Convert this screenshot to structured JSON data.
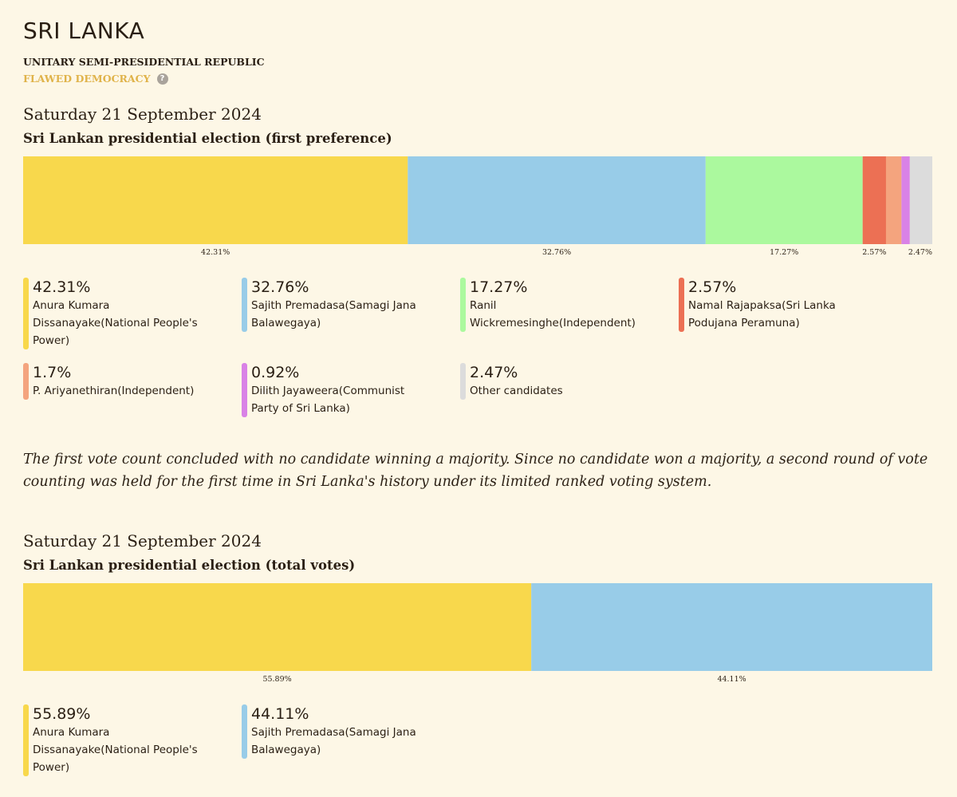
{
  "country": {
    "name": "SRI LANKA",
    "government_type": "UNITARY SEMI-PRESIDENTIAL REPUBLIC",
    "democracy_index": "FLAWED DEMOCRACY",
    "democracy_color": "#e0b34a",
    "help_icon": "?"
  },
  "note": "The first vote count concluded with no candidate winning a majority. Since no candidate won a majority, a second round of vote counting was held for the first time in Sri Lanka's history under its limited ranked voting system.",
  "chart_data": [
    {
      "type": "bar",
      "orientation": "stacked-horizontal",
      "date": "Saturday 21 September 2024",
      "title": "Sri Lankan presidential election (first preference)",
      "series": [
        {
          "name": "Anura Kumara Dissanayake(National People's Power)",
          "value": 42.31,
          "label": "42.31%",
          "bar_label": "42.31%",
          "color": "#f8d84c"
        },
        {
          "name": "Sajith Premadasa(Samagi Jana Balawegaya)",
          "value": 32.76,
          "label": "32.76%",
          "bar_label": "32.76%",
          "color": "#98cce8"
        },
        {
          "name": "Ranil Wickremesinghe(Independent)",
          "value": 17.27,
          "label": "17.27%",
          "bar_label": "17.27%",
          "color": "#abf99e"
        },
        {
          "name": "Namal Rajapaksa(Sri Lanka Podujana Peramuna)",
          "value": 2.57,
          "label": "2.57%",
          "bar_label": "2.57%",
          "color": "#ec7054"
        },
        {
          "name": "P. Ariyanethiran(Independent)",
          "value": 1.7,
          "label": "1.7%",
          "bar_label": "",
          "color": "#f4a47e"
        },
        {
          "name": "Dilith Jayaweera(Communist Party of Sri Lanka)",
          "value": 0.92,
          "label": "0.92%",
          "bar_label": "",
          "color": "#d982e6"
        },
        {
          "name": "Other candidates",
          "value": 2.47,
          "label": "2.47%",
          "bar_label": "2.47%",
          "color": "#dcdcdc"
        }
      ]
    },
    {
      "type": "bar",
      "orientation": "stacked-horizontal",
      "date": "Saturday 21 September 2024",
      "title": "Sri Lankan presidential election (total votes)",
      "series": [
        {
          "name": "Anura Kumara Dissanayake(National People's Power)",
          "value": 55.89,
          "label": "55.89%",
          "bar_label": "55.89%",
          "color": "#f8d84c"
        },
        {
          "name": "Sajith Premadasa(Samagi Jana Balawegaya)",
          "value": 44.11,
          "label": "44.11%",
          "bar_label": "44.11%",
          "color": "#98cce8"
        }
      ]
    }
  ]
}
